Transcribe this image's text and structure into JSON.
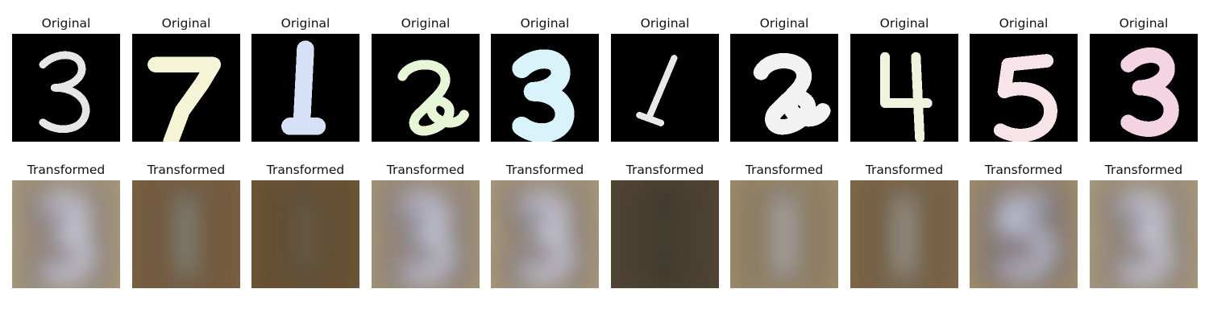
{
  "rows": {
    "original": {
      "title": "Original",
      "panels": [
        {
          "digit": "3",
          "color": "#e6e6e6"
        },
        {
          "digit": "7",
          "color": "#f6f4d6"
        },
        {
          "digit": "1",
          "color": "#d6e0f6"
        },
        {
          "digit": "2",
          "color": "#e6f6d6"
        },
        {
          "digit": "3",
          "color": "#d8f4fa"
        },
        {
          "digit": "1",
          "color": "#e8e8e8"
        },
        {
          "digit": "2",
          "color": "#f2f2f2"
        },
        {
          "digit": "4",
          "color": "#eef4de"
        },
        {
          "digit": "5",
          "color": "#f6e4e8"
        },
        {
          "digit": "3",
          "color": "#f4d4e2"
        }
      ]
    },
    "transformed": {
      "title": "Transformed",
      "panels": [
        {
          "digit": "3",
          "background": "#a89a7e",
          "stroke": "#4a4258",
          "fill": "#dfe2ee"
        },
        {
          "digit": "1",
          "background": "#7c6142",
          "stroke": "#3a3430",
          "fill": "#9a9a8a"
        },
        {
          "digit": "1",
          "background": "#6e5636",
          "stroke": "#2e2a26",
          "fill": "#7a6a52"
        },
        {
          "digit": "3",
          "background": "#a4947a",
          "stroke": "#4e4660",
          "fill": "#d8dcea"
        },
        {
          "digit": "3",
          "background": "#a8987c",
          "stroke": "#4a4258",
          "fill": "#dce0ec"
        },
        {
          "digit": "1",
          "background": "#524634",
          "stroke": "#26241e",
          "fill": "#4a4434"
        },
        {
          "digit": "1",
          "background": "#9c8a6a",
          "stroke": "#3e3a40",
          "fill": "#c8c8c8"
        },
        {
          "digit": "1",
          "background": "#80684a",
          "stroke": "#3a3632",
          "fill": "#b4b2a4"
        },
        {
          "digit": "5",
          "background": "#a08e70",
          "stroke": "#3e3656",
          "fill": "#cfd4e4"
        },
        {
          "digit": "3",
          "background": "#a89a7e",
          "stroke": "#4a4258",
          "fill": "#dfe2ee"
        }
      ]
    }
  }
}
